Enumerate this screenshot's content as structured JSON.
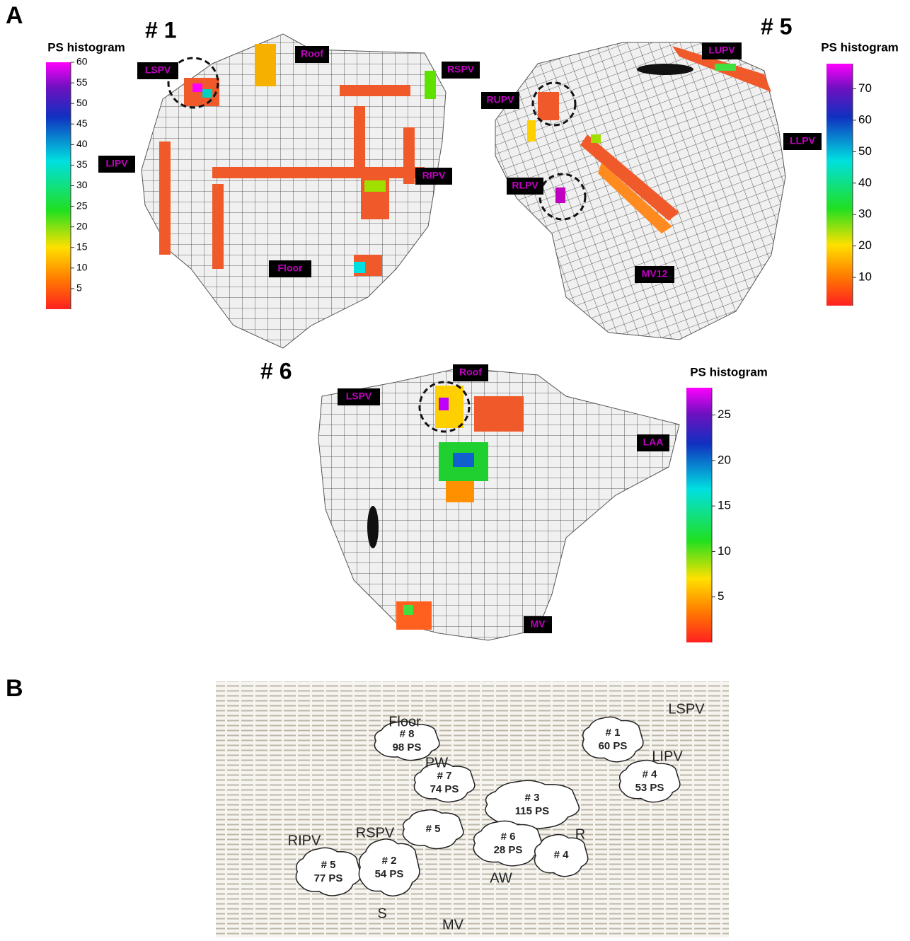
{
  "panel_labels": [
    "A",
    "B"
  ],
  "maps": [
    {
      "title": "# 1",
      "colorbar_title": "PS histogram",
      "clim": [
        0,
        60
      ],
      "ticks": [
        5,
        10,
        15,
        20,
        25,
        30,
        35,
        40,
        45,
        50,
        55,
        60
      ],
      "labels": [
        "LSPV",
        "Roof",
        "RSPV",
        "LIPV",
        "RIPV",
        "Floor"
      ]
    },
    {
      "title": "# 5",
      "colorbar_title": "PS histogram",
      "clim": [
        1,
        78
      ],
      "ticks": [
        10,
        20,
        30,
        40,
        50,
        60,
        70
      ],
      "labels": [
        "LUPV",
        "RUPV",
        "LLPV",
        "RLPV",
        "MV12"
      ]
    },
    {
      "title": "# 6",
      "colorbar_title": "PS histogram",
      "clim": [
        0,
        28
      ],
      "ticks": [
        5,
        10,
        15,
        20,
        25
      ],
      "labels": [
        "LSPV",
        "Roof",
        "LAA",
        "MV"
      ]
    }
  ],
  "diagram": {
    "regions": [
      "Floor",
      "PW",
      "LSPV",
      "LIPV",
      "R",
      "RIPV",
      "RSPV",
      "AW",
      "S",
      "MV"
    ],
    "clouds": [
      {
        "id": "# 1",
        "count": "60 PS"
      },
      {
        "id": "# 4",
        "count": "53 PS"
      },
      {
        "id": "# 8",
        "count": "98 PS"
      },
      {
        "id": "# 7",
        "count": "74 PS"
      },
      {
        "id": "# 3",
        "count": "115 PS"
      },
      {
        "id": "# 5"
      },
      {
        "id": "# 6",
        "count": "28 PS"
      },
      {
        "id": "# 4"
      },
      {
        "id": "# 5",
        "count": "77 PS"
      },
      {
        "id": "# 2",
        "count": "54 PS"
      }
    ]
  }
}
